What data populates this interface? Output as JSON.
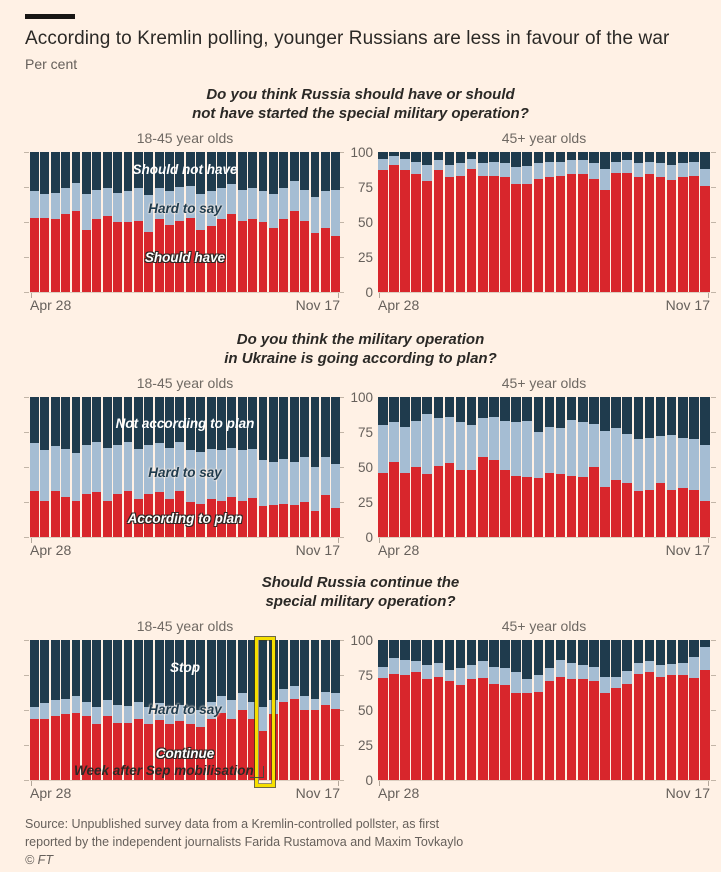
{
  "header": {
    "title": "According to Kremlin polling, younger Russians are less in favour of the war",
    "subtitle": "Per cent"
  },
  "axis": {
    "x_start": "Apr 28",
    "x_end": "Nov 17",
    "y_ticks": [
      100,
      75,
      50,
      25,
      0
    ],
    "ylim": [
      0,
      100
    ],
    "grid": false
  },
  "colors": {
    "background": "#FFF1E5",
    "bottom_segment_red": "#D8262C",
    "middle_segment_blue": "#A5BDD3",
    "top_segment_navy": "#1F3B4D",
    "highlight_yellow": "#F6DF00",
    "text_dark": "#2B2926",
    "text_gray": "#66605B"
  },
  "chart_data": [
    {
      "type": "bar",
      "stacked": true,
      "question": "Do you think Russia should have or should\nnot have started the special military operation?",
      "segment_labels": {
        "top": "Should not have",
        "mid": "Hard to say",
        "bot": "Should have"
      },
      "note": "top segment = 100 - bottom - middle; weekly polls Apr 28 to Nov 17",
      "panels": [
        {
          "title": "18-45 year olds",
          "bottom": [
            53,
            53,
            52,
            56,
            58,
            44,
            52,
            54,
            50,
            50,
            51,
            43,
            52,
            48,
            51,
            53,
            44,
            47,
            52,
            56,
            51,
            52,
            50,
            46,
            52,
            58,
            51,
            42,
            46,
            40
          ],
          "middle": [
            19,
            17,
            19,
            18,
            20,
            26,
            21,
            20,
            21,
            22,
            23,
            26,
            22,
            24,
            24,
            23,
            26,
            25,
            22,
            21,
            22,
            22,
            22,
            24,
            22,
            21,
            22,
            26,
            26,
            33
          ]
        },
        {
          "title": "45+ year olds",
          "bottom": [
            87,
            91,
            87,
            84,
            79,
            87,
            82,
            83,
            88,
            83,
            83,
            82,
            77,
            77,
            81,
            82,
            83,
            84,
            84,
            81,
            73,
            85,
            85,
            82,
            84,
            82,
            80,
            82,
            83,
            76
          ],
          "middle": [
            8,
            6,
            8,
            9,
            12,
            7,
            9,
            9,
            7,
            9,
            10,
            10,
            12,
            13,
            11,
            11,
            10,
            10,
            10,
            11,
            15,
            8,
            9,
            10,
            9,
            10,
            11,
            10,
            10,
            12
          ]
        }
      ]
    },
    {
      "type": "bar",
      "stacked": true,
      "question": "Do you think the military operation\nin Ukraine is going according to plan?",
      "segment_labels": {
        "top": "Not according to plan",
        "mid": "Hard to say",
        "bot": "According to plan"
      },
      "panels": [
        {
          "title": "18-45 year olds",
          "bottom": [
            33,
            26,
            33,
            29,
            26,
            31,
            32,
            26,
            31,
            33,
            27,
            31,
            32,
            27,
            33,
            25,
            24,
            27,
            26,
            29,
            26,
            28,
            22,
            23,
            24,
            23,
            25,
            19,
            30,
            21
          ],
          "middle": [
            34,
            36,
            32,
            34,
            34,
            35,
            36,
            38,
            35,
            35,
            36,
            35,
            35,
            37,
            35,
            37,
            37,
            36,
            36,
            35,
            36,
            35,
            33,
            31,
            32,
            31,
            32,
            31,
            27,
            31
          ]
        },
        {
          "title": "45+ year olds",
          "bottom": [
            46,
            54,
            46,
            50,
            45,
            51,
            53,
            48,
            48,
            57,
            55,
            48,
            44,
            43,
            42,
            46,
            45,
            44,
            43,
            50,
            36,
            41,
            39,
            33,
            34,
            39,
            34,
            35,
            34,
            26
          ],
          "middle": [
            34,
            28,
            33,
            33,
            43,
            34,
            33,
            34,
            32,
            28,
            31,
            35,
            38,
            40,
            33,
            33,
            33,
            40,
            39,
            31,
            40,
            37,
            35,
            37,
            37,
            33,
            39,
            36,
            36,
            40
          ]
        }
      ]
    },
    {
      "type": "bar",
      "stacked": true,
      "question": "Should Russia continue the\nspecial military operation?",
      "segment_labels": {
        "top": "Stop",
        "mid": "Hard to say",
        "bot": "Continue"
      },
      "annotation": {
        "text": "Week after Sep mobilisation",
        "panel_index": 0,
        "bar_index": 22
      },
      "panels": [
        {
          "title": "18-45 year olds",
          "bottom": [
            44,
            44,
            46,
            47,
            48,
            46,
            40,
            46,
            41,
            41,
            44,
            40,
            43,
            40,
            42,
            40,
            38,
            44,
            48,
            44,
            50,
            44,
            35,
            47,
            56,
            58,
            50,
            50,
            54,
            51
          ],
          "middle": [
            8,
            11,
            11,
            11,
            12,
            10,
            12,
            11,
            13,
            12,
            12,
            12,
            12,
            13,
            12,
            12,
            12,
            12,
            12,
            13,
            12,
            12,
            17,
            10,
            9,
            9,
            10,
            8,
            9,
            11
          ]
        },
        {
          "title": "45+ year olds",
          "bottom": [
            73,
            76,
            75,
            77,
            72,
            74,
            71,
            68,
            72,
            73,
            69,
            68,
            62,
            62,
            63,
            71,
            74,
            72,
            72,
            71,
            62,
            66,
            69,
            76,
            77,
            74,
            75,
            75,
            73,
            79
          ],
          "middle": [
            8,
            11,
            11,
            8,
            10,
            10,
            8,
            12,
            10,
            12,
            12,
            12,
            15,
            10,
            12,
            9,
            12,
            12,
            10,
            10,
            12,
            8,
            9,
            8,
            8,
            8,
            8,
            9,
            15,
            16
          ]
        }
      ]
    }
  ],
  "source": {
    "line1": "Source: Unpublished survey data from a Kremlin-controlled pollster, as first",
    "line2": "reported by the independent journalists Farida Rustamova and Maxim Tovkaylo",
    "credit": "© FT"
  }
}
